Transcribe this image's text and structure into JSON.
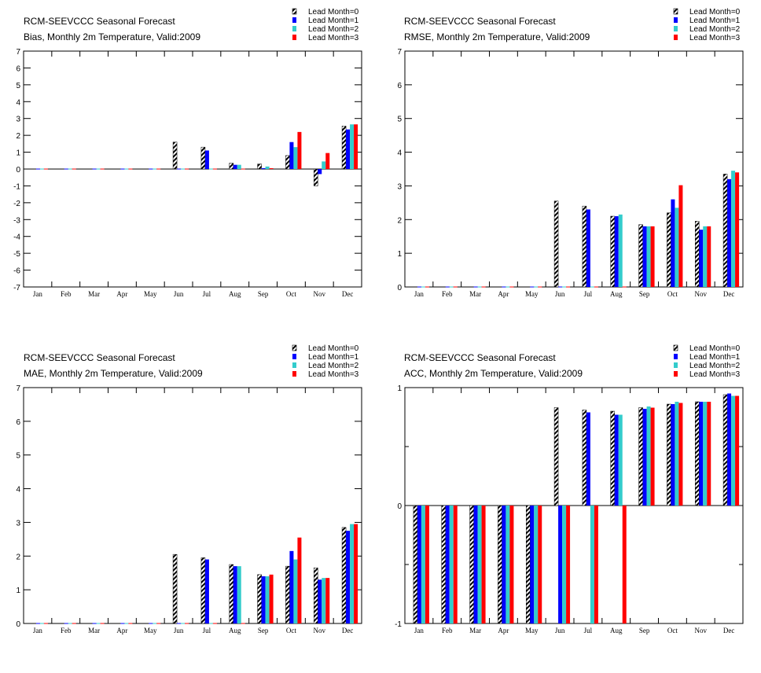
{
  "chart_data": [
    {
      "type": "bar",
      "title": "RCM-SEEVCCC Seasonal Forecast",
      "subtitle": "Bias, Monthly 2m Temperature, Valid:2009",
      "categories": [
        "Jan",
        "Feb",
        "Mar",
        "Apr",
        "May",
        "Jun",
        "Jul",
        "Aug",
        "Sep",
        "Oct",
        "Nov",
        "Dec"
      ],
      "ylim": [
        -7,
        7
      ],
      "yticks": [
        -7,
        -6,
        -5,
        -4,
        -3,
        -2,
        -1,
        0,
        1,
        2,
        3,
        4,
        5,
        6,
        7
      ],
      "legend": "top-right",
      "series": [
        {
          "name": "Lead Month=0",
          "color": "#000000",
          "pattern": "hatch",
          "values": [
            0,
            0,
            0,
            0,
            0,
            1.6,
            1.3,
            0.35,
            0.3,
            0.8,
            -1.0,
            2.55
          ]
        },
        {
          "name": "Lead Month=1",
          "color": "#0000ff",
          "values": [
            0,
            0,
            0,
            0,
            0,
            0,
            1.1,
            0.25,
            0.05,
            1.6,
            -0.3,
            2.35
          ]
        },
        {
          "name": "Lead Month=2",
          "color": "#33cccc",
          "values": [
            0,
            0,
            0,
            0,
            0,
            0,
            0,
            0.25,
            0.15,
            1.3,
            0.45,
            2.65
          ]
        },
        {
          "name": "Lead Month=3",
          "color": "#ff0000",
          "values": [
            0,
            0,
            0,
            0,
            0,
            0,
            0,
            0,
            0.05,
            2.2,
            0.95,
            2.65
          ]
        }
      ]
    },
    {
      "type": "bar",
      "title": "RCM-SEEVCCC Seasonal Forecast",
      "subtitle": "RMSE, Monthly 2m Temperature, Valid:2009",
      "categories": [
        "Jan",
        "Feb",
        "Mar",
        "Apr",
        "May",
        "Jun",
        "Jul",
        "Aug",
        "Sep",
        "Oct",
        "Nov",
        "Dec"
      ],
      "ylim": [
        0,
        7
      ],
      "yticks": [
        0,
        1,
        2,
        3,
        4,
        5,
        6,
        7
      ],
      "legend": "top-right",
      "series": [
        {
          "name": "Lead Month=0",
          "color": "#000000",
          "pattern": "hatch",
          "values": [
            0,
            0,
            0,
            0,
            0,
            2.55,
            2.4,
            2.1,
            1.85,
            2.2,
            1.95,
            3.35
          ]
        },
        {
          "name": "Lead Month=1",
          "color": "#0000ff",
          "values": [
            0,
            0,
            0,
            0,
            0,
            0,
            2.3,
            2.1,
            1.8,
            2.6,
            1.7,
            3.2
          ]
        },
        {
          "name": "Lead Month=2",
          "color": "#33cccc",
          "values": [
            0,
            0,
            0,
            0,
            0,
            0,
            0,
            2.15,
            1.8,
            2.35,
            1.8,
            3.45
          ]
        },
        {
          "name": "Lead Month=3",
          "color": "#ff0000",
          "values": [
            0,
            0,
            0,
            0,
            0,
            0,
            0,
            0,
            1.8,
            3.02,
            1.8,
            3.4
          ]
        }
      ]
    },
    {
      "type": "bar",
      "title": "RCM-SEEVCCC Seasonal Forecast",
      "subtitle": "MAE, Monthly 2m Temperature, Valid:2009",
      "categories": [
        "Jan",
        "Feb",
        "Mar",
        "Apr",
        "May",
        "Jun",
        "Jul",
        "Aug",
        "Sep",
        "Oct",
        "Nov",
        "Dec"
      ],
      "ylim": [
        0,
        7
      ],
      "yticks": [
        0,
        1,
        2,
        3,
        4,
        5,
        6,
        7
      ],
      "legend": "top-right",
      "series": [
        {
          "name": "Lead Month=0",
          "color": "#000000",
          "pattern": "hatch",
          "values": [
            0,
            0,
            0,
            0,
            0,
            2.05,
            1.95,
            1.75,
            1.45,
            1.7,
            1.65,
            2.85
          ]
        },
        {
          "name": "Lead Month=1",
          "color": "#0000ff",
          "values": [
            0,
            0,
            0,
            0,
            0,
            0,
            1.9,
            1.7,
            1.4,
            2.15,
            1.3,
            2.75
          ]
        },
        {
          "name": "Lead Month=2",
          "color": "#33cccc",
          "values": [
            0,
            0,
            0,
            0,
            0,
            0,
            0,
            1.7,
            1.4,
            1.9,
            1.35,
            2.95
          ]
        },
        {
          "name": "Lead Month=3",
          "color": "#ff0000",
          "values": [
            0,
            0,
            0,
            0,
            0,
            0,
            0,
            0,
            1.45,
            2.55,
            1.35,
            2.95
          ]
        }
      ]
    },
    {
      "type": "bar",
      "title": "RCM-SEEVCCC Seasonal Forecast",
      "subtitle": "ACC, Monthly 2m Temperature, Valid:2009",
      "categories": [
        "Jan",
        "Feb",
        "Mar",
        "Apr",
        "May",
        "Jun",
        "Jul",
        "Aug",
        "Sep",
        "Oct",
        "Nov",
        "Dec"
      ],
      "ylim": [
        -1,
        1
      ],
      "yticks": [
        -1,
        0,
        1
      ],
      "legend": "top-right",
      "series": [
        {
          "name": "Lead Month=0",
          "color": "#000000",
          "pattern": "hatch",
          "values": [
            -1,
            -1,
            -1,
            -1,
            -1,
            0.83,
            0.81,
            0.8,
            0.83,
            0.86,
            0.88,
            0.94
          ]
        },
        {
          "name": "Lead Month=1",
          "color": "#0000ff",
          "values": [
            -1,
            -1,
            -1,
            -1,
            -1,
            -1,
            0.79,
            0.77,
            0.82,
            0.86,
            0.88,
            0.95
          ]
        },
        {
          "name": "Lead Month=2",
          "color": "#33cccc",
          "values": [
            -1,
            -1,
            -1,
            -1,
            -1,
            -1,
            -1,
            0.77,
            0.84,
            0.88,
            0.88,
            0.93
          ]
        },
        {
          "name": "Lead Month=3",
          "color": "#ff0000",
          "values": [
            -1,
            -1,
            -1,
            -1,
            -1,
            -1,
            -1,
            -1,
            0.83,
            0.87,
            0.88,
            0.93
          ]
        }
      ]
    }
  ]
}
